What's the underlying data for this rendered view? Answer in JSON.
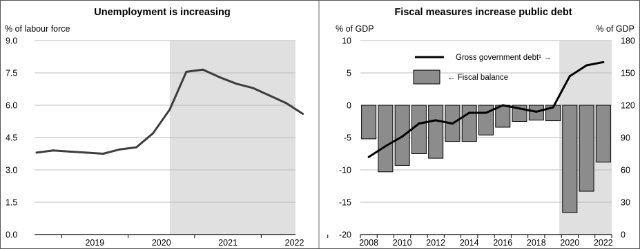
{
  "chart_data": [
    {
      "type": "line",
      "title": "Unemployment is increasing",
      "ylabel": "% of labour force",
      "ylim": [
        0,
        9
      ],
      "yticks": [
        "0.0",
        "1.5",
        "3.0",
        "4.5",
        "6.0",
        "7.5",
        "9.0"
      ],
      "xticks": [
        "2019",
        "2020",
        "2021",
        "2022"
      ],
      "projection_shading": "from 2020 Q3 onward",
      "series": [
        {
          "x": [
            "2018Q3",
            "2018Q4",
            "2019Q1",
            "2019Q2",
            "2019Q3",
            "2019Q4",
            "2020Q1",
            "2020Q2",
            "2020Q3",
            "2020Q4",
            "2021Q1",
            "2021Q2",
            "2021Q3",
            "2021Q4",
            "2022Q1",
            "2022Q2",
            "2022Q3"
          ],
          "values": [
            3.8,
            3.9,
            3.85,
            3.8,
            3.75,
            3.95,
            4.05,
            4.7,
            5.8,
            7.55,
            7.65,
            7.3,
            7.0,
            6.8,
            6.45,
            6.1,
            5.6
          ]
        }
      ],
      "grid": true,
      "line_color": "#3d3d3d"
    },
    {
      "type": "bar+line",
      "title": "Fiscal measures increase public debt",
      "ylabel_left": "% of GDP",
      "ylabel_right": "% of GDP",
      "ylim_left": [
        -20,
        10
      ],
      "ylim_right": [
        0,
        180
      ],
      "yticks_left": [
        "-20",
        "-15",
        "-10",
        "-5",
        "0",
        "5",
        "10"
      ],
      "yticks_right": [
        "0",
        "30",
        "60",
        "90",
        "120",
        "150",
        "180"
      ],
      "xticks": [
        "2008",
        "2010",
        "2012",
        "2014",
        "2016",
        "2018",
        "2020",
        "2022"
      ],
      "categories": [
        "2008",
        "2009",
        "2010",
        "2011",
        "2012",
        "2013",
        "2014",
        "2015",
        "2016",
        "2017",
        "2018",
        "2019",
        "2020",
        "2021",
        "2022"
      ],
      "projection_shading": "2020-2022",
      "series": [
        {
          "name": "← Fiscal balance",
          "type": "bar",
          "axis": "left",
          "values": [
            -5.2,
            -10.3,
            -9.3,
            -7.5,
            -8.2,
            -5.6,
            -5.6,
            -4.6,
            -3.4,
            -2.5,
            -2.3,
            -2.4,
            -16.6,
            -13.3,
            -8.8
          ]
        },
        {
          "name": "Gross government debt¹ →",
          "type": "line",
          "axis": "right",
          "values": [
            72,
            82,
            91,
            103,
            106,
            103,
            113,
            113,
            120,
            117,
            114,
            118,
            147,
            157,
            160
          ]
        }
      ],
      "grid": true,
      "legend_position": "top",
      "bar_color": "#8c8c8c",
      "line_color": "#000000"
    }
  ]
}
